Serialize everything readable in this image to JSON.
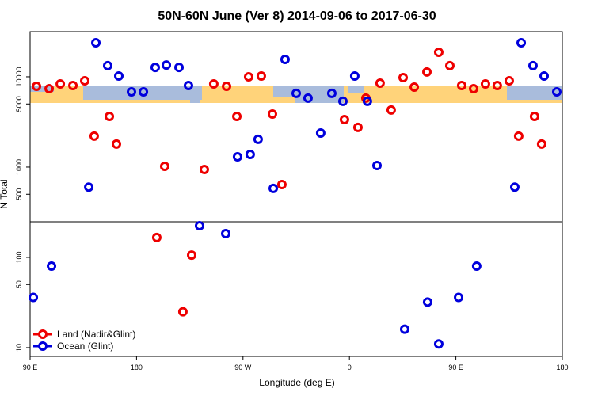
{
  "chart_data": {
    "type": "scatter",
    "title": "50N-60N June (Ver 8)   2014-09-06 to 2017-06-30",
    "x_label": "Longitude (deg E)",
    "y_label": "N Total",
    "log_y": true,
    "legend": "bottom-left",
    "xlim": [
      90,
      540
    ],
    "xticks": [
      {
        "value": 90,
        "label": "90 E"
      },
      180,
      {
        "value": 270,
        "label": "90 W"
      },
      {
        "value": 360,
        "label": "0"
      },
      {
        "value": 450,
        "label": "90 E"
      },
      {
        "value": 540,
        "label": "180"
      }
    ],
    "ylim": [
      8,
      31600
    ],
    "yticks": [
      10,
      50,
      100,
      500,
      1000,
      5000,
      10000
    ],
    "series": [
      {
        "name": "Land (Nadir&Glint)",
        "color": "#ee0000",
        "x": [
          95.4,
          106.1,
          115.5,
          126.2,
          136.2,
          144.2,
          157.0,
          163.0,
          203.8,
          237.3,
          245.3,
          256.1,
          264.8,
          274.8,
          285.5,
          294.9,
          302.9,
          355.8,
          367.2,
          373.9,
          385.9,
          395.3,
          405.4,
          414.8,
          425.5,
          435.5,
          444.9,
          454.9,
          465.0,
          475.0,
          485.0,
          495.1,
          503.1,
          516.5,
          522.5,
          197.1,
          219.2,
          226.6
        ],
        "values": [
          7850,
          7380,
          8340,
          8010,
          9040,
          2200,
          3640,
          1800,
          1020,
          940,
          8340,
          7850,
          3640,
          10000,
          10200,
          3870,
          640,
          3360,
          2750,
          5800,
          8510,
          4290,
          9800,
          7690,
          11300,
          18700,
          13300,
          8010,
          7380,
          8340,
          8010,
          9040,
          2200,
          3640,
          1800,
          166,
          25,
          106
        ]
      },
      {
        "name": "Ocean (Glint)",
        "color": "#0000dd",
        "x": [
          139.6,
          145.6,
          155.6,
          165.0,
          175.7,
          185.8,
          195.8,
          205.2,
          215.9,
          223.9,
          265.4,
          276.1,
          282.8,
          295.6,
          305.6,
          315.0,
          325.0,
          335.7,
          345.1,
          354.5,
          364.5,
          375.2,
          383.3,
          499.8,
          505.2,
          515.2,
          524.6,
          535.3,
          92.7,
          108.1,
          233.3,
          255.4,
          406.7,
          426.1,
          435.5,
          452.3,
          467.6
        ],
        "values": [
          600,
          23800,
          13300,
          10200,
          6810,
          6810,
          12700,
          13500,
          12700,
          8010,
          1300,
          1380,
          2030,
          580,
          15600,
          6550,
          5800,
          2380,
          6550,
          5350,
          10200,
          5350,
          1040,
          600,
          23800,
          13300,
          10200,
          6810,
          36,
          80,
          224,
          183,
          16,
          32,
          11,
          36,
          80
        ]
      }
    ]
  }
}
